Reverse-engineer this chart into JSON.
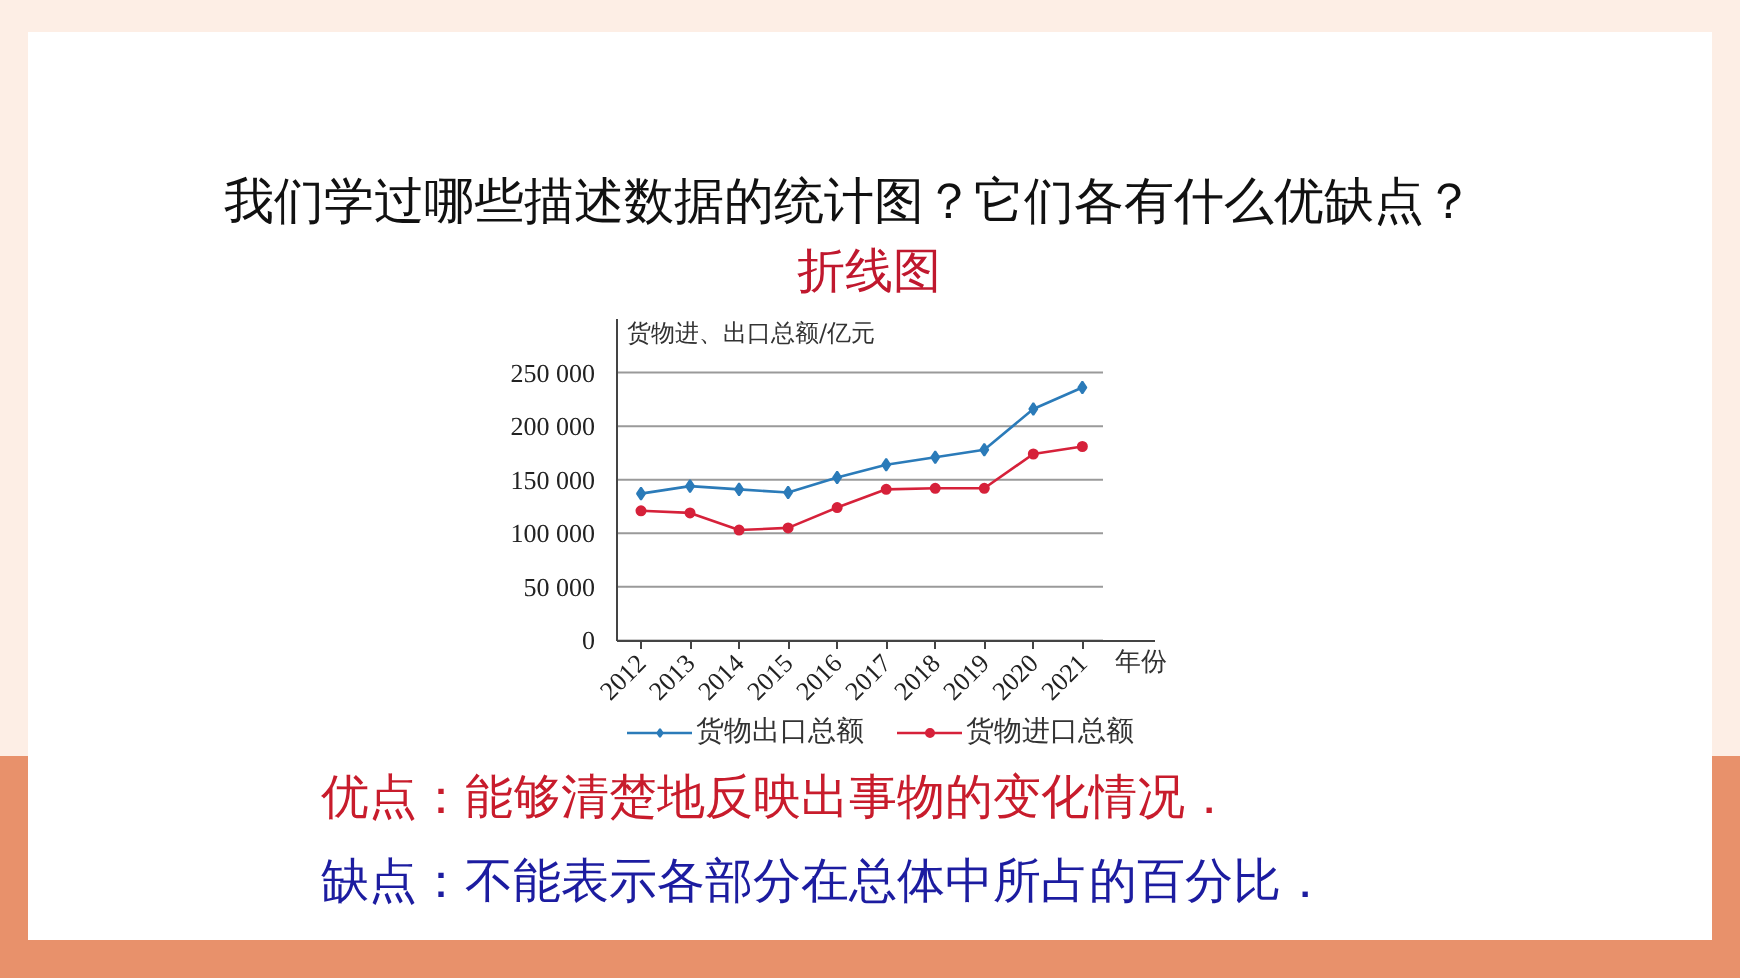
{
  "chart_data": {
    "type": "line",
    "title": "我们学过哪些描述数据的统计图？它们各有什么优缺点？",
    "subtitle": "折线图",
    "ylabel": "货物进、出口总额/亿元",
    "xlabel": "年份",
    "categories": [
      "2012",
      "2013",
      "2014",
      "2015",
      "2016",
      "2017",
      "2018",
      "2019",
      "2020",
      "2021"
    ],
    "ylim": [
      0,
      300000
    ],
    "yticks": [
      0,
      {
        "value": 50000,
        "label": "50 000"
      },
      {
        "value": 100000,
        "label": "100 000"
      },
      {
        "value": 150000,
        "label": "150 000"
      },
      {
        "value": 200000,
        "label": "200 000"
      },
      {
        "value": 250000,
        "label": "250 000"
      }
    ],
    "grid": "y",
    "legend": "bottom",
    "series": [
      {
        "name": "货物出口总额",
        "color": "#2b7bb9",
        "marker": "diamond",
        "values": [
          137000,
          144000,
          141000,
          138000,
          152000,
          164000,
          171000,
          178000,
          216000,
          236000
        ]
      },
      {
        "name": "货物进口总额",
        "color": "#d6213a",
        "marker": "circle",
        "values": [
          121000,
          119000,
          103000,
          105000,
          124000,
          141000,
          142000,
          142000,
          174000,
          181000
        ]
      }
    ],
    "annotations": [
      "优点：能够清楚地反映出事物的变化情况．",
      "缺点：不能表示各部分在总体中所占的百分比．"
    ]
  }
}
